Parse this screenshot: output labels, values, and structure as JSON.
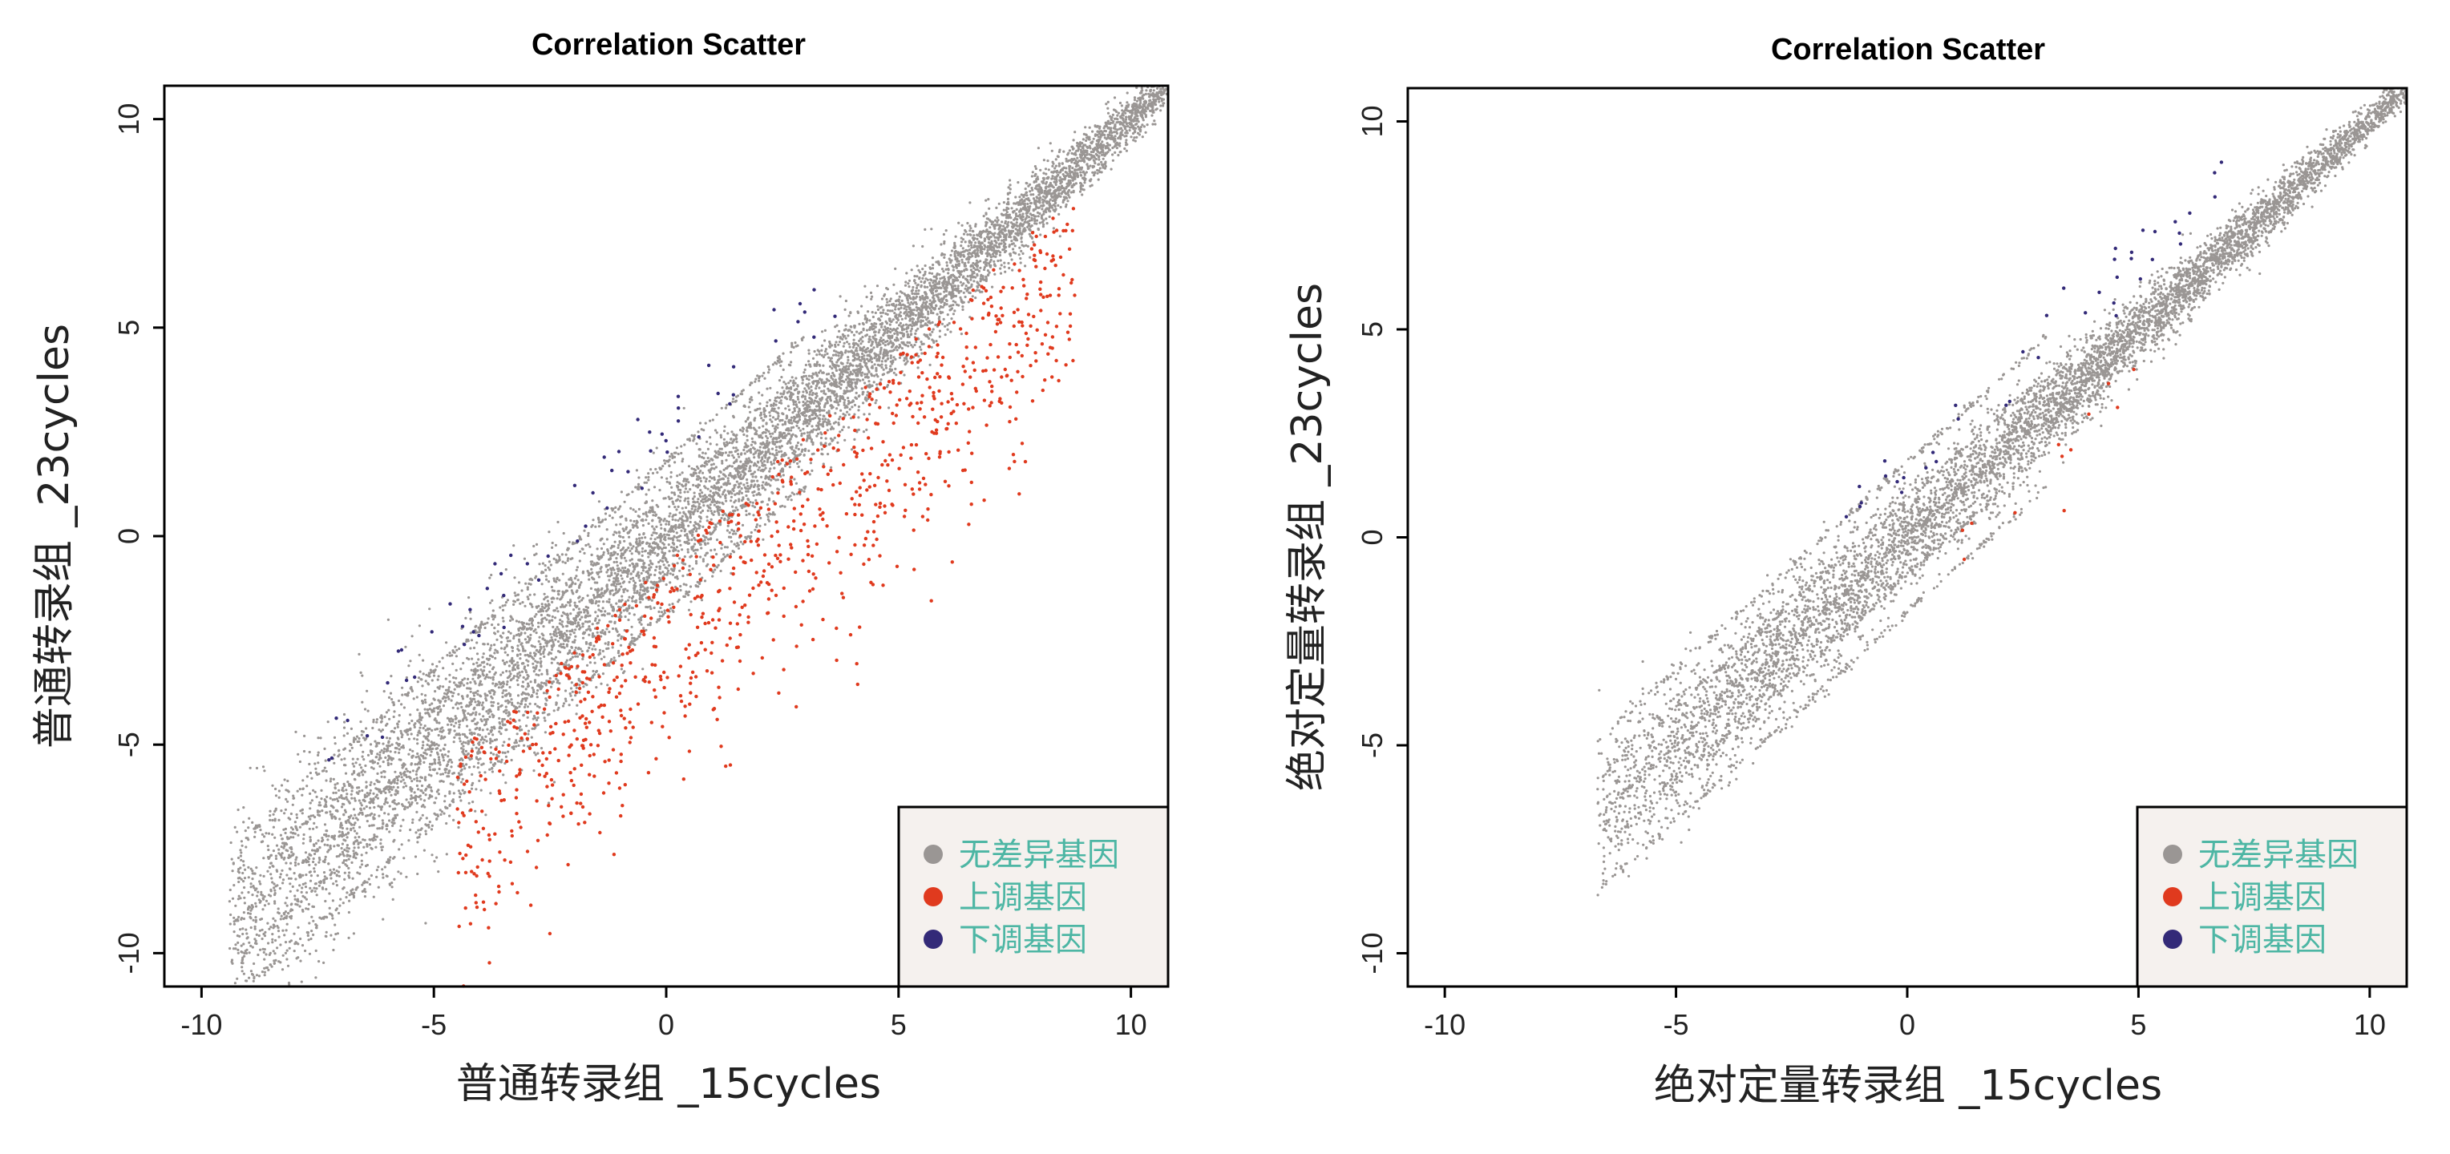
{
  "colors": {
    "none": "#9a9694",
    "up": "#e03a1e",
    "down": "#332a78",
    "legend_bg": "#f5f1ee",
    "legend_text": "#4db6a4",
    "axis": "#000000"
  },
  "chart_data": [
    {
      "type": "scatter",
      "title": "Correlation Scatter",
      "xlabel": "普通转录组 _15cycles",
      "ylabel": "普通转录组 _23cycles",
      "xlim": [
        -10.8,
        10.8
      ],
      "ylim": [
        -10.8,
        10.8
      ],
      "xticks": [
        -10,
        -5,
        0,
        5,
        10
      ],
      "yticks": [
        -10,
        -5,
        0,
        5,
        10
      ],
      "xtick_labels": [
        "-10",
        "-5",
        "0",
        "5",
        "10"
      ],
      "ytick_labels": [
        "-10",
        "-5",
        "0",
        "5",
        "10"
      ],
      "legend_position": "bottom-right",
      "legend": [
        {
          "label": "无差异基因",
          "key": "none"
        },
        {
          "label": "上调基因",
          "key": "up"
        },
        {
          "label": "下调基因",
          "key": "down"
        }
      ],
      "series": [
        {
          "name": "无差异基因",
          "key": "none",
          "count": 9000,
          "x_range": [
            -9.4,
            10.8
          ],
          "spread": 1.3
        },
        {
          "name": "上调基因",
          "key": "up",
          "count": 900,
          "x_range": [
            -4.5,
            8.8
          ],
          "spread": 1.6,
          "offset": -2.8
        },
        {
          "name": "下调基因",
          "key": "down",
          "count": 60,
          "x_range": [
            -7.3,
            4.0
          ],
          "offset": 2.4
        }
      ]
    },
    {
      "type": "scatter",
      "title": "Correlation Scatter",
      "xlabel": "绝对定量转录组 _15cycles",
      "ylabel": "绝对定量转录组 _23cycles",
      "xlim": [
        -10.8,
        10.8
      ],
      "ylim": [
        -10.8,
        10.8
      ],
      "xticks": [
        -10,
        -5,
        0,
        5,
        10
      ],
      "yticks": [
        -10,
        -5,
        0,
        5,
        10
      ],
      "xtick_labels": [
        "-10",
        "-5",
        "0",
        "5",
        "10"
      ],
      "ytick_labels": [
        "-10",
        "-5",
        "0",
        "5",
        "10"
      ],
      "legend_position": "bottom-right",
      "legend": [
        {
          "label": "无差异基因",
          "key": "none"
        },
        {
          "label": "上调基因",
          "key": "up"
        },
        {
          "label": "下调基因",
          "key": "down"
        }
      ],
      "series": [
        {
          "name": "无差异基因",
          "key": "none",
          "count": 7000,
          "x_range": [
            -6.7,
            10.8
          ],
          "spread": 0.9
        },
        {
          "name": "上调基因",
          "key": "up",
          "count": 12,
          "x_range": [
            0.5,
            5.2
          ],
          "offset": -1.3
        },
        {
          "name": "下调基因",
          "key": "down",
          "count": 40,
          "x_range": [
            -1.5,
            6.8
          ],
          "offset": 1.6
        }
      ]
    }
  ]
}
